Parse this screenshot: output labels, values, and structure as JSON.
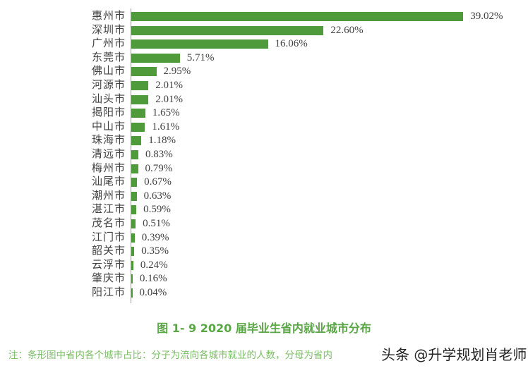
{
  "chart_data": {
    "type": "bar",
    "orientation": "horizontal",
    "title": "图 1-9    2020 届毕业生省内就业城市分布",
    "xlabel": "",
    "ylabel": "",
    "grid": false,
    "bar_color": "#4f9a3a",
    "categories": [
      "惠州市",
      "深圳市",
      "广州市",
      "东莞市",
      "佛山市",
      "河源市",
      "汕头市",
      "揭阳市",
      "中山市",
      "珠海市",
      "清远市",
      "梅州市",
      "汕尾市",
      "潮州市",
      "湛江市",
      "茂名市",
      "江门市",
      "韶关市",
      "云浮市",
      "肇庆市",
      "阳江市"
    ],
    "values": [
      39.02,
      22.6,
      16.06,
      5.71,
      2.95,
      2.01,
      2.01,
      1.65,
      1.61,
      1.18,
      0.83,
      0.79,
      0.67,
      0.63,
      0.59,
      0.51,
      0.39,
      0.35,
      0.24,
      0.16,
      0.04
    ],
    "value_labels": [
      "39.02%",
      "22.60%",
      "16.06%",
      "5.71%",
      "2.95%",
      "2.01%",
      "2.01%",
      "1.65%",
      "1.61%",
      "1.18%",
      "0.83%",
      "0.79%",
      "0.67%",
      "0.63%",
      "0.59%",
      "0.51%",
      "0.39%",
      "0.35%",
      "0.24%",
      "0.16%",
      "0.04%"
    ],
    "unit": "%"
  },
  "caption": {
    "text": "图 1- 9    2020 届毕业生省内就业城市分布",
    "color": "#5aa646"
  },
  "note": {
    "text": "注：条形图中省内各个城市占比：分子为流向各城市就业的人数，分母为省内",
    "color": "#7bbd66"
  },
  "watermark": {
    "text": "头条 @升学规划肖老师"
  }
}
